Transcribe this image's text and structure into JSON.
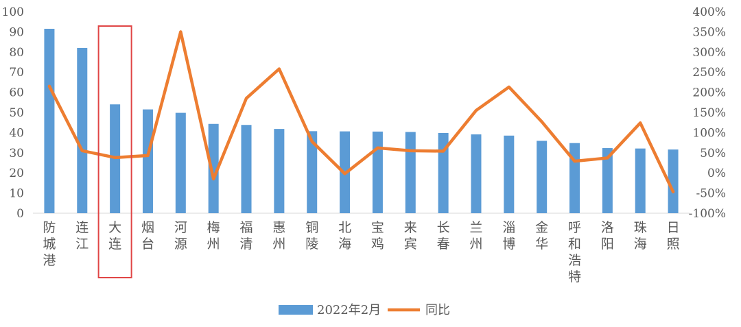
{
  "chart_data": {
    "type": "bar",
    "categories": [
      "防城港",
      "连江",
      "大连",
      "烟台",
      "河源",
      "梅州",
      "福清",
      "惠州",
      "铜陵",
      "北海",
      "宝鸡",
      "来宾",
      "长春",
      "兰州",
      "淄博",
      "金华",
      "呼和浩特",
      "洛阳",
      "珠海",
      "日照"
    ],
    "series": [
      {
        "name": "2022年2月",
        "type": "bar",
        "axis": "left",
        "color": "#5B9BD5",
        "values": [
          91.5,
          82,
          54,
          51.5,
          49.8,
          44.3,
          43.8,
          41.8,
          40.7,
          40.6,
          40.5,
          40.3,
          39.8,
          39.1,
          38.5,
          35.9,
          34.8,
          32.3,
          32.1,
          31.6
        ]
      },
      {
        "name": "同比",
        "type": "line",
        "axis": "right",
        "color": "#ED7D31",
        "values": [
          215,
          55,
          38,
          43,
          350,
          -15,
          185,
          258,
          78,
          -2,
          62,
          55,
          54,
          155,
          213,
          127,
          29,
          37,
          124,
          -47
        ]
      }
    ],
    "y_left": {
      "min": 0,
      "max": 100,
      "step": 10,
      "tick_labels": [
        "0",
        "10",
        "20",
        "30",
        "40",
        "50",
        "60",
        "70",
        "80",
        "90",
        "100"
      ]
    },
    "y_right": {
      "min": -100,
      "max": 400,
      "step": 50,
      "tick_labels": [
        "-100%",
        "-50%",
        "0%",
        "50%",
        "100%",
        "150%",
        "200%",
        "250%",
        "300%",
        "350%",
        "400%"
      ]
    },
    "grid": false,
    "legend_position": "bottom",
    "highlight": {
      "category": "大连",
      "color": "#E04545"
    },
    "title": "",
    "xlabel": "",
    "ylabel": ""
  }
}
